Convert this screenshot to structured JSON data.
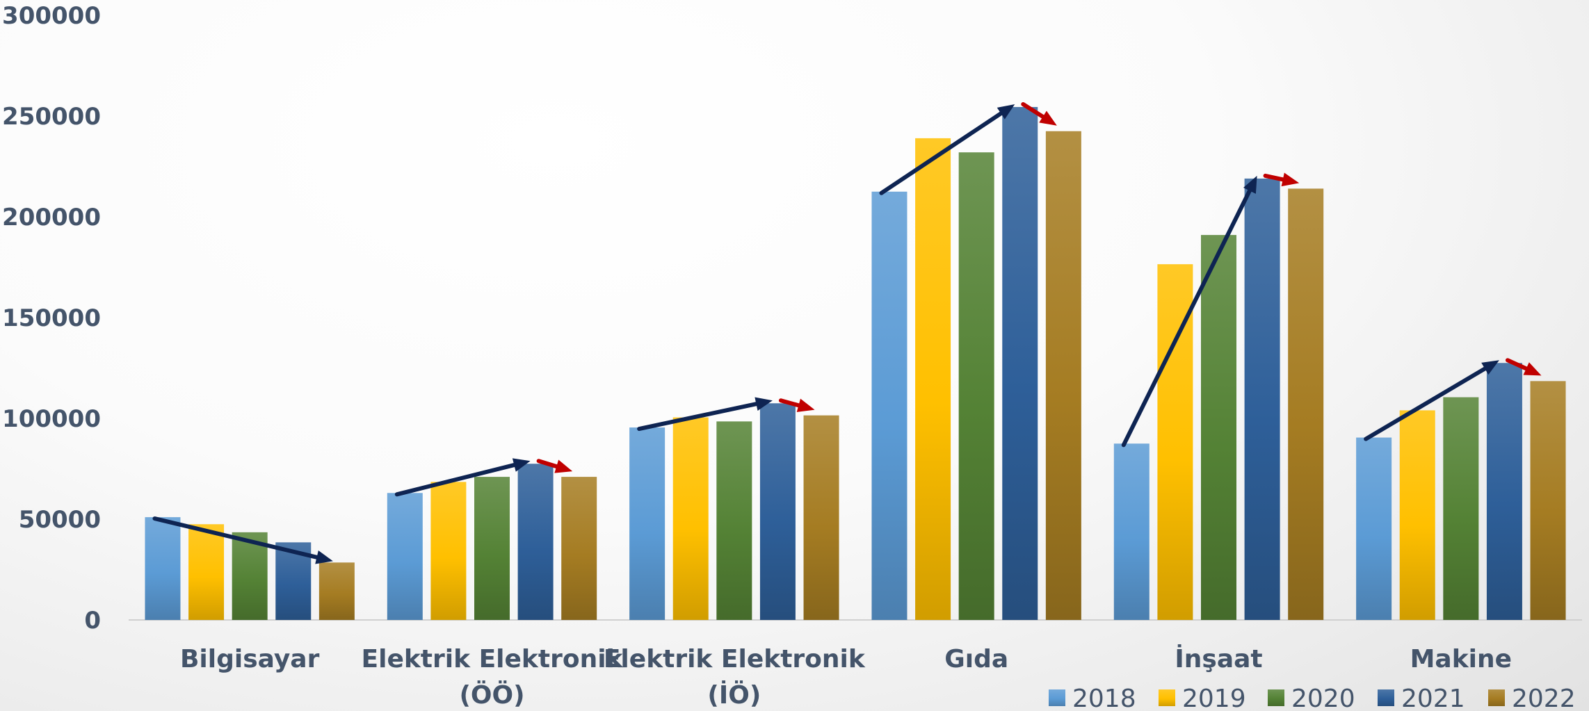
{
  "chart_data": {
    "type": "bar",
    "title": "",
    "xlabel": "",
    "ylabel": "",
    "ylim": [
      0,
      300000
    ],
    "yticks": [
      "0",
      "50000",
      "100000",
      "150000",
      "200000",
      "250000",
      "300000"
    ],
    "categories": [
      [
        "Bilgisayar"
      ],
      [
        "Elektrik Elektronik",
        "(ÖÖ)"
      ],
      [
        "Elektrik Elektronik",
        "(İÖ)"
      ],
      [
        "Gıda"
      ],
      [
        "İnşaat"
      ],
      [
        "Makine"
      ]
    ],
    "series": [
      {
        "name": "2018",
        "values": [
          51000,
          63000,
          95500,
          212500,
          87500,
          90500
        ],
        "color": "#5b9bd5"
      },
      {
        "name": "2019",
        "values": [
          47500,
          68500,
          100500,
          239000,
          176500,
          104000
        ],
        "color": "#ffc000"
      },
      {
        "name": "2020",
        "values": [
          43500,
          71000,
          98500,
          232000,
          191000,
          110500
        ],
        "color": "#548235"
      },
      {
        "name": "2021",
        "values": [
          38500,
          77500,
          107500,
          254500,
          219000,
          127500
        ],
        "color": "#2e5f99"
      },
      {
        "name": "2022",
        "values": [
          28500,
          71000,
          101500,
          242500,
          214000,
          118500
        ],
        "color": "#a57c22"
      }
    ],
    "grid": false,
    "legend_position": "bottom-right",
    "trend_arrows": [
      {
        "category": 0,
        "from_series": 0,
        "to_series": 4,
        "color": "#0e2452"
      },
      {
        "category": 1,
        "from_series": 0,
        "to_series": 3,
        "color": "#0e2452"
      },
      {
        "category": 1,
        "from_series": 3,
        "to_series": 4,
        "color": "#c00000"
      },
      {
        "category": 2,
        "from_series": 0,
        "to_series": 3,
        "color": "#0e2452"
      },
      {
        "category": 2,
        "from_series": 3,
        "to_series": 4,
        "color": "#c00000"
      },
      {
        "category": 3,
        "from_series": 0,
        "to_series": 3,
        "color": "#0e2452"
      },
      {
        "category": 3,
        "from_series": 3,
        "to_series": 4,
        "color": "#c00000"
      },
      {
        "category": 4,
        "from_series": 0,
        "to_series": 3,
        "color": "#0e2452"
      },
      {
        "category": 4,
        "from_series": 3,
        "to_series": 4,
        "color": "#c00000"
      },
      {
        "category": 5,
        "from_series": 0,
        "to_series": 3,
        "color": "#0e2452"
      },
      {
        "category": 5,
        "from_series": 3,
        "to_series": 4,
        "color": "#c00000"
      }
    ]
  }
}
